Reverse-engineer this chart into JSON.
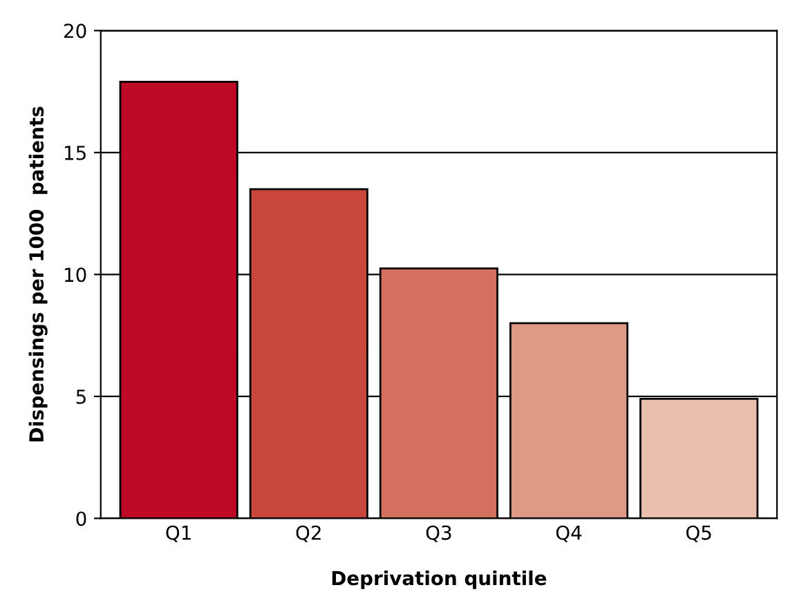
{
  "chart_data": {
    "type": "bar",
    "xlabel": "Deprivation quintile",
    "ylabel": "Dispensings per 1000  patients",
    "categories": [
      "Q1",
      "Q2",
      "Q3",
      "Q4",
      "Q5"
    ],
    "values": [
      17.9,
      13.5,
      10.25,
      8.0,
      4.9
    ],
    "colors": [
      "#be0a26",
      "#c8463c",
      "#d4705f",
      "#df9a86",
      "#ebbfae"
    ],
    "ylim": [
      0,
      20
    ],
    "yticks": [
      0,
      5,
      10,
      15,
      20
    ],
    "grid": "y",
    "legend": false
  }
}
